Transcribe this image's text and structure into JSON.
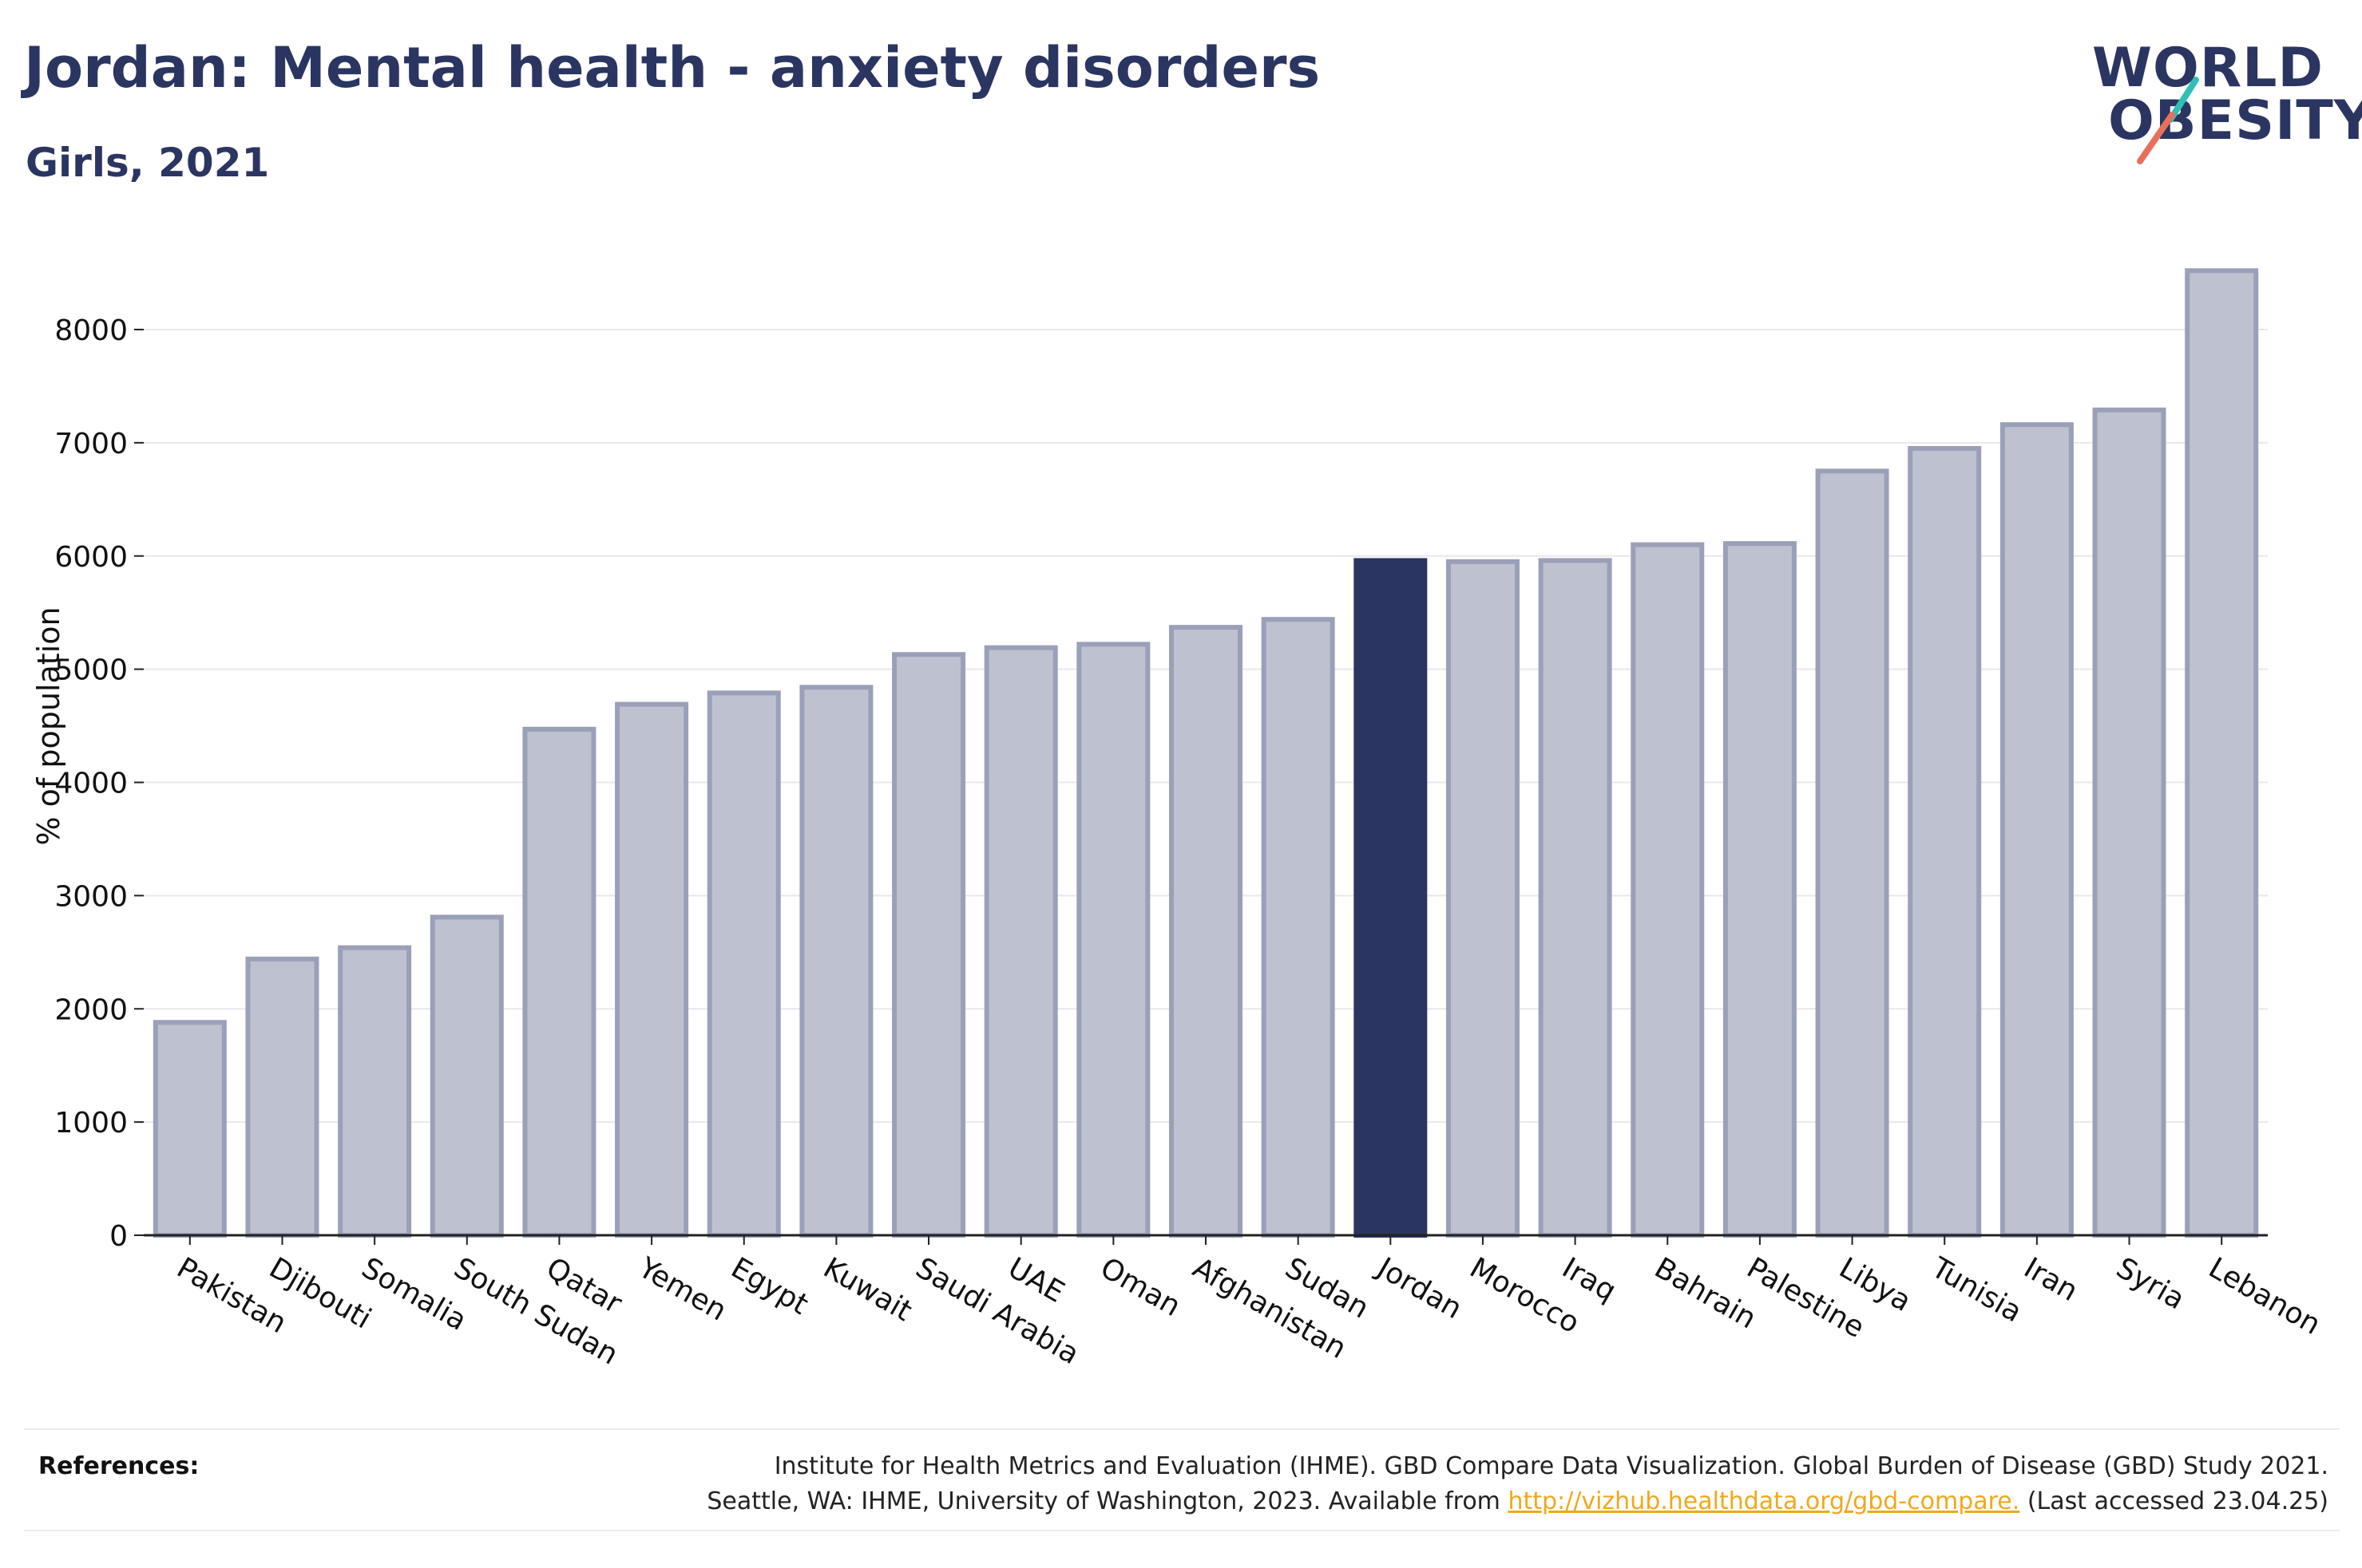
{
  "header": {
    "title": "Jordan: Mental health - anxiety disorders",
    "subtitle": "Girls, 2021"
  },
  "logo": {
    "line1": "WORLD",
    "line2": "OBESITY",
    "slash_colors": [
      "#2fc0b5",
      "#e8705b"
    ]
  },
  "colors": {
    "highlight": "#2b3561",
    "bar_fill": "#bec1cf",
    "bar_stroke": "#9aa0b8",
    "grid": "#e8e8ee",
    "link": "#f0a81c"
  },
  "chart_data": {
    "type": "bar",
    "title": "Jordan: Mental health - anxiety disorders",
    "subtitle": "Girls, 2021",
    "ylabel": "% of population",
    "xlabel": "",
    "ylim": [
      0,
      8800
    ],
    "yticks": [
      0,
      1000,
      2000,
      3000,
      4000,
      5000,
      6000,
      7000,
      8000
    ],
    "grid": true,
    "highlight": "Jordan",
    "categories": [
      "Pakistan",
      "Djibouti",
      "Somalia",
      "South Sudan",
      "Qatar",
      "Yemen",
      "Egypt",
      "Kuwait",
      "Saudi Arabia",
      "UAE",
      "Oman",
      "Afghanistan",
      "Sudan",
      "Jordan",
      "Morocco",
      "Iraq",
      "Bahrain",
      "Palestine",
      "Libya",
      "Tunisia",
      "Iran",
      "Syria",
      "Lebanon"
    ],
    "values": [
      1880,
      2440,
      2540,
      2810,
      4470,
      4690,
      4790,
      4840,
      5130,
      5190,
      5220,
      5370,
      5440,
      5960,
      5950,
      5960,
      6100,
      6110,
      6750,
      6950,
      7160,
      7290,
      8520
    ]
  },
  "references": {
    "label": "References:",
    "line1": "Institute for Health Metrics and Evaluation (IHME). GBD Compare Data Visualization. Global Burden of Disease (GBD) Study 2021.",
    "line2_prefix": "Seattle, WA: IHME, University of Washington, 2023. Available from ",
    "link": "http://vizhub.healthdata.org/gbd-compare.",
    "line2_suffix": " (Last accessed 23.04.25)"
  }
}
